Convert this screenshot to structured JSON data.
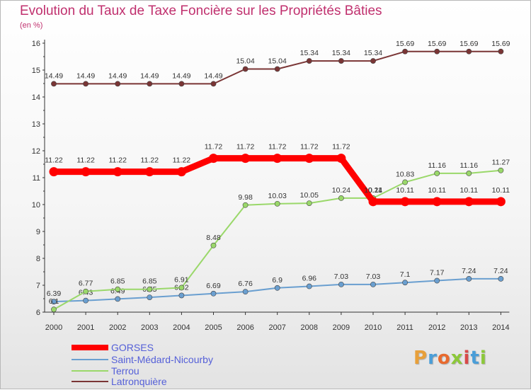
{
  "title": "Evolution du Taux de Taxe Foncière sur les Propriétés Bâties",
  "unit_label": "(en %)",
  "logo": {
    "text": "Proxiti",
    "colors": [
      "#e8a03a",
      "#4a9ed8",
      "#e86a2e",
      "#8cc83a",
      "#d84a4a",
      "#4a9ed8",
      "#8cc83a"
    ]
  },
  "chart_data": {
    "type": "line",
    "title": "Evolution du Taux de Taxe Foncière sur les Propriétés Bâties",
    "ylabel": "(en %)",
    "xlabel": "",
    "ylim": [
      6,
      16
    ],
    "yticks": [
      6,
      7,
      8,
      9,
      10,
      11,
      12,
      13,
      14,
      15,
      16
    ],
    "grid": false,
    "legend_position": "bottom-left",
    "categories": [
      "2000",
      "2001",
      "2002",
      "2003",
      "2004",
      "2005",
      "2006",
      "2007",
      "2008",
      "2009",
      "2010",
      "2011",
      "2012",
      "2013",
      "2014"
    ],
    "series": [
      {
        "name": "GORSES",
        "color": "#ff0000",
        "values": [
          11.22,
          11.22,
          11.22,
          11.22,
          11.22,
          11.72,
          11.72,
          11.72,
          11.72,
          11.72,
          10.11,
          10.11,
          10.11,
          10.11,
          10.11
        ],
        "labels": [
          "11.22",
          "11.22",
          "11.22",
          "11.22",
          "11.22",
          "11.72",
          "11.72",
          "11.72",
          "11.72",
          "11.72",
          "10.11",
          "10.11",
          "10.11",
          "10.11",
          "10.11"
        ]
      },
      {
        "name": "Saint-Médard-Nicourby",
        "color": "#6a9fd0",
        "values": [
          6.39,
          6.43,
          6.49,
          6.55,
          6.62,
          6.69,
          6.76,
          6.9,
          6.96,
          7.03,
          7.03,
          7.1,
          7.17,
          7.24,
          7.24
        ],
        "labels": [
          "6.39",
          "6.43",
          "6.49",
          "6.55",
          "6.62",
          "6.69",
          "6.76",
          "6.9",
          "6.96",
          "7.03",
          "7.03",
          "7.1",
          "7.17",
          "7.24",
          "7.24"
        ]
      },
      {
        "name": "Terrou",
        "color": "#9ad86a",
        "values": [
          6.1,
          6.77,
          6.85,
          6.85,
          6.91,
          8.48,
          9.98,
          10.03,
          10.05,
          10.24,
          10.24,
          10.83,
          11.16,
          11.16,
          11.27
        ],
        "labels": [
          "6.1",
          "6.77",
          "6.85",
          "6.85",
          "6.91",
          "8.48",
          "9.98",
          "10.03",
          "10.05",
          "10.24",
          "10.24",
          "10.83",
          "11.16",
          "11.16",
          "11.27"
        ]
      },
      {
        "name": "Latronquière",
        "color": "#7a3535",
        "values": [
          14.49,
          14.49,
          14.49,
          14.49,
          14.49,
          14.49,
          15.04,
          15.04,
          15.34,
          15.34,
          15.34,
          15.69,
          15.69,
          15.69,
          15.69
        ],
        "labels": [
          "14.49",
          "14.49",
          "14.49",
          "14.49",
          "14.49",
          "14.49",
          "15.04",
          "15.04",
          "15.34",
          "15.34",
          "15.34",
          "15.69",
          "15.69",
          "15.69",
          "15.69"
        ]
      }
    ]
  }
}
